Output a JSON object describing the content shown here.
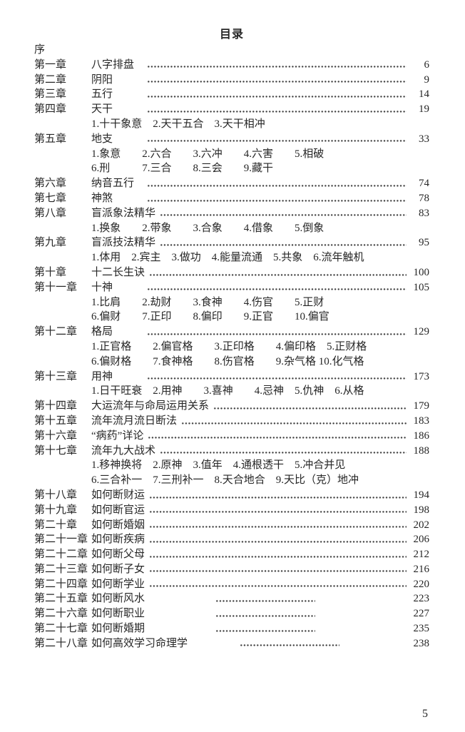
{
  "document": {
    "title": "目录",
    "footer_page_number": "5",
    "text_color": "#262626",
    "leader_dot_color": "#3d3d3d",
    "background_color": "#ffffff"
  },
  "toc": {
    "rows": [
      {
        "type": "plain",
        "text": "序"
      },
      {
        "type": "chapter",
        "label": "第一章",
        "title": "八字排盘",
        "page": "6",
        "leader": "full"
      },
      {
        "type": "chapter",
        "label": "第二章",
        "title": "阴阳",
        "page": "9",
        "leader": "full"
      },
      {
        "type": "chapter",
        "label": "第三章",
        "title": "五行",
        "page": "14",
        "leader": "full"
      },
      {
        "type": "chapter",
        "label": "第四章",
        "title": "天干",
        "page": "19",
        "leader": "full"
      },
      {
        "type": "sub",
        "text": "1.十干象意　2.天干五合　3.天干相冲"
      },
      {
        "type": "chapter",
        "label": "第五章",
        "title": "地支",
        "page": "33",
        "leader": "full"
      },
      {
        "type": "sub",
        "text": "1.象意　　2.六合　　3.六冲　　4.六害　　5.相破"
      },
      {
        "type": "sub",
        "text": "6.刑　　　7.三合　　8.三会　　9.藏干"
      },
      {
        "type": "chapter",
        "label": "第六章",
        "title": "纳音五行",
        "page": "74",
        "leader": "full"
      },
      {
        "type": "chapter",
        "label": "第七章",
        "title": "神煞",
        "page": "78",
        "leader": "full"
      },
      {
        "type": "chapter",
        "label": "第八章",
        "title": "盲派象法精华",
        "page": "83",
        "leader": "full"
      },
      {
        "type": "sub",
        "text": "1.换象　　2.带象　　3.合象　　4.借象　　5.倒象"
      },
      {
        "type": "chapter",
        "label": "第九章",
        "title": "盲派技法精华",
        "page": "95",
        "leader": "full"
      },
      {
        "type": "sub",
        "text": "1.体用　2.宾主　3.做功　4.能量流通　5.共象　6.流年触机"
      },
      {
        "type": "chapter",
        "label": "第十章",
        "title": "十二长生诀",
        "page": "100",
        "leader": "full"
      },
      {
        "type": "chapter",
        "label": "第十一章",
        "title": "十神",
        "page": "105",
        "leader": "full"
      },
      {
        "type": "sub",
        "text": "1.比肩　　2.劫财　　3.食神　　4.伤官　　5.正财"
      },
      {
        "type": "sub",
        "text": "6.偏财　　7.正印　　8.偏印　　9.正官　　10.偏官"
      },
      {
        "type": "chapter",
        "label": "第十二章",
        "title": "格局",
        "page": "129",
        "leader": "full"
      },
      {
        "type": "sub",
        "text": "1.正官格　　2.偏官格　　3.正印格　　4.偏印格　5.正财格"
      },
      {
        "type": "sub",
        "text": "6.偏财格　　7.食神格　　8.伤官格　　9.杂气格 10.化气格"
      },
      {
        "type": "chapter",
        "label": "第十三章",
        "title": "用神",
        "page": "173",
        "leader": "full"
      },
      {
        "type": "sub",
        "text": "1.日干旺衰　2.用神　　3.喜神　　4.忌神　5.仇神　6.从格"
      },
      {
        "type": "chapter",
        "label": "第十四章",
        "title": "大运流年与命局运用关系",
        "page": "179",
        "leader": "full"
      },
      {
        "type": "chapter",
        "label": "第十五章",
        "title": "流年流月流日断法",
        "page": "183",
        "leader": "full"
      },
      {
        "type": "chapter",
        "label": "第十六章",
        "title": "“病药”详论",
        "page": "186",
        "leader": "full"
      },
      {
        "type": "chapter",
        "label": "第十七章",
        "title": "流年九大战术",
        "page": "188",
        "leader": "full"
      },
      {
        "type": "sub",
        "text": "1.移神换将　2.原神　3.值年　4.通根透干　5.冲合并见"
      },
      {
        "type": "sub",
        "text": "6.三合补一　7.三刑补一　8.天合地合　9.天比（克）地冲"
      },
      {
        "type": "chapter",
        "label": "第十八章",
        "title": "如何断财运",
        "page": "194",
        "leader": "full"
      },
      {
        "type": "chapter",
        "label": "第十九章",
        "title": "如何断官运",
        "page": "198",
        "leader": "full"
      },
      {
        "type": "chapter",
        "label": "第二十章",
        "title": "如何断婚姻",
        "page": "202",
        "leader": "full"
      },
      {
        "type": "chapter",
        "label": "第二十一章",
        "title": "如何断疾病",
        "page": "206",
        "leader": "full"
      },
      {
        "type": "chapter",
        "label": "第二十二章",
        "title": "如何断父母",
        "page": "212",
        "leader": "full"
      },
      {
        "type": "chapter",
        "label": "第二十三章",
        "title": "如何断子女",
        "page": "216",
        "leader": "full"
      },
      {
        "type": "chapter",
        "label": "第二十四章",
        "title": "如何断学业",
        "page": "220",
        "leader": "full"
      },
      {
        "type": "chapter",
        "label": "第二十五章",
        "title": "如何断风水",
        "page": "223",
        "leader": "center"
      },
      {
        "type": "chapter",
        "label": "第二十六章",
        "title": "如何断职业",
        "page": "227",
        "leader": "center"
      },
      {
        "type": "chapter",
        "label": "第二十七章",
        "title": "如何断婚期",
        "page": "235",
        "leader": "center"
      },
      {
        "type": "chapter",
        "label": "第二十八章",
        "title": "如何高效学习命理学",
        "page": "238",
        "leader": "center"
      }
    ]
  }
}
